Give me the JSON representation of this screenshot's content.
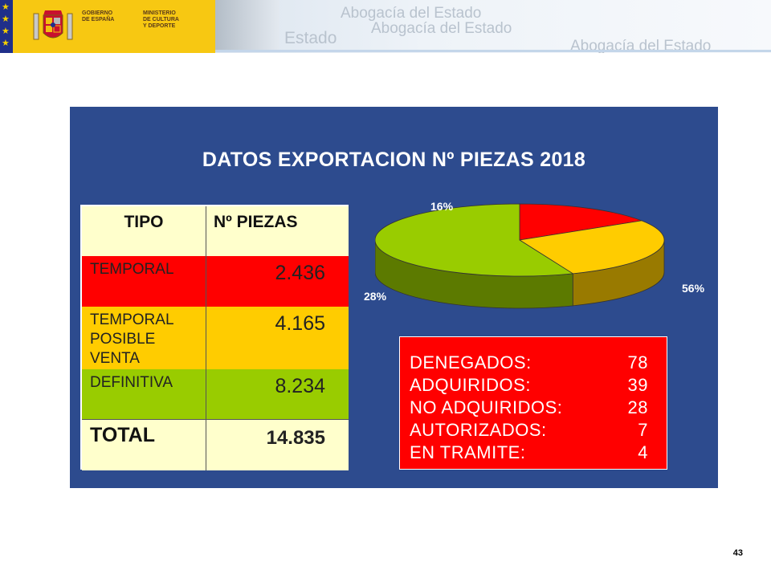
{
  "header": {
    "gov_line1": "GOBIERNO\nDE ESPAÑA",
    "gov_line2": "MINISTERIO\nDE CULTURA\nY DEPORTE",
    "watermark_1": "Abogacía del Estado",
    "watermark_2": "Abogacía del Estado",
    "watermark_3": "Estado",
    "watermark_4": "Abogacía del Estado"
  },
  "slide": {
    "title": "DATOS EXPORTACION Nº PIEZAS 2018"
  },
  "table": {
    "headers": [
      "TIPO",
      "Nº PIEZAS"
    ],
    "rows": [
      {
        "label": "TEMPORAL",
        "value": "2.436",
        "color": "#ff0000"
      },
      {
        "label": "TEMPORAL\nPOSIBLE\nVENTA",
        "value": "4.165",
        "color": "#ffcc00"
      },
      {
        "label": "DEFINITIVA",
        "value": "8.234",
        "color": "#99cc00"
      }
    ],
    "total": {
      "label": "TOTAL",
      "value": "14.835"
    }
  },
  "stats": [
    {
      "label": "DENEGADOS:",
      "value": "78"
    },
    {
      "label": "ADQUIRIDOS:",
      "value": "39"
    },
    {
      "label": "NO ADQUIRIDOS:",
      "value": "28"
    },
    {
      "label": "AUTORIZADOS:",
      "value": "7"
    },
    {
      "label": "EN TRAMITE:",
      "value": "4"
    }
  ],
  "chart_data": {
    "type": "pie",
    "categories": [
      "TEMPORAL",
      "TEMPORAL POSIBLE VENTA",
      "DEFINITIVA"
    ],
    "values": [
      16,
      28,
      56
    ],
    "labels": [
      "16%",
      "28%",
      "56%"
    ],
    "colors": [
      "#ff0000",
      "#ffcc00",
      "#99cc00"
    ],
    "side_colors": [
      "#990000",
      "#997a00",
      "#5c7a00"
    ],
    "style": "3d"
  },
  "page": {
    "number": "43"
  },
  "colors": {
    "panel_bg": "#2d4b8e",
    "banner_yellow": "#f7c812",
    "eu_blue": "#1f2f8a"
  }
}
